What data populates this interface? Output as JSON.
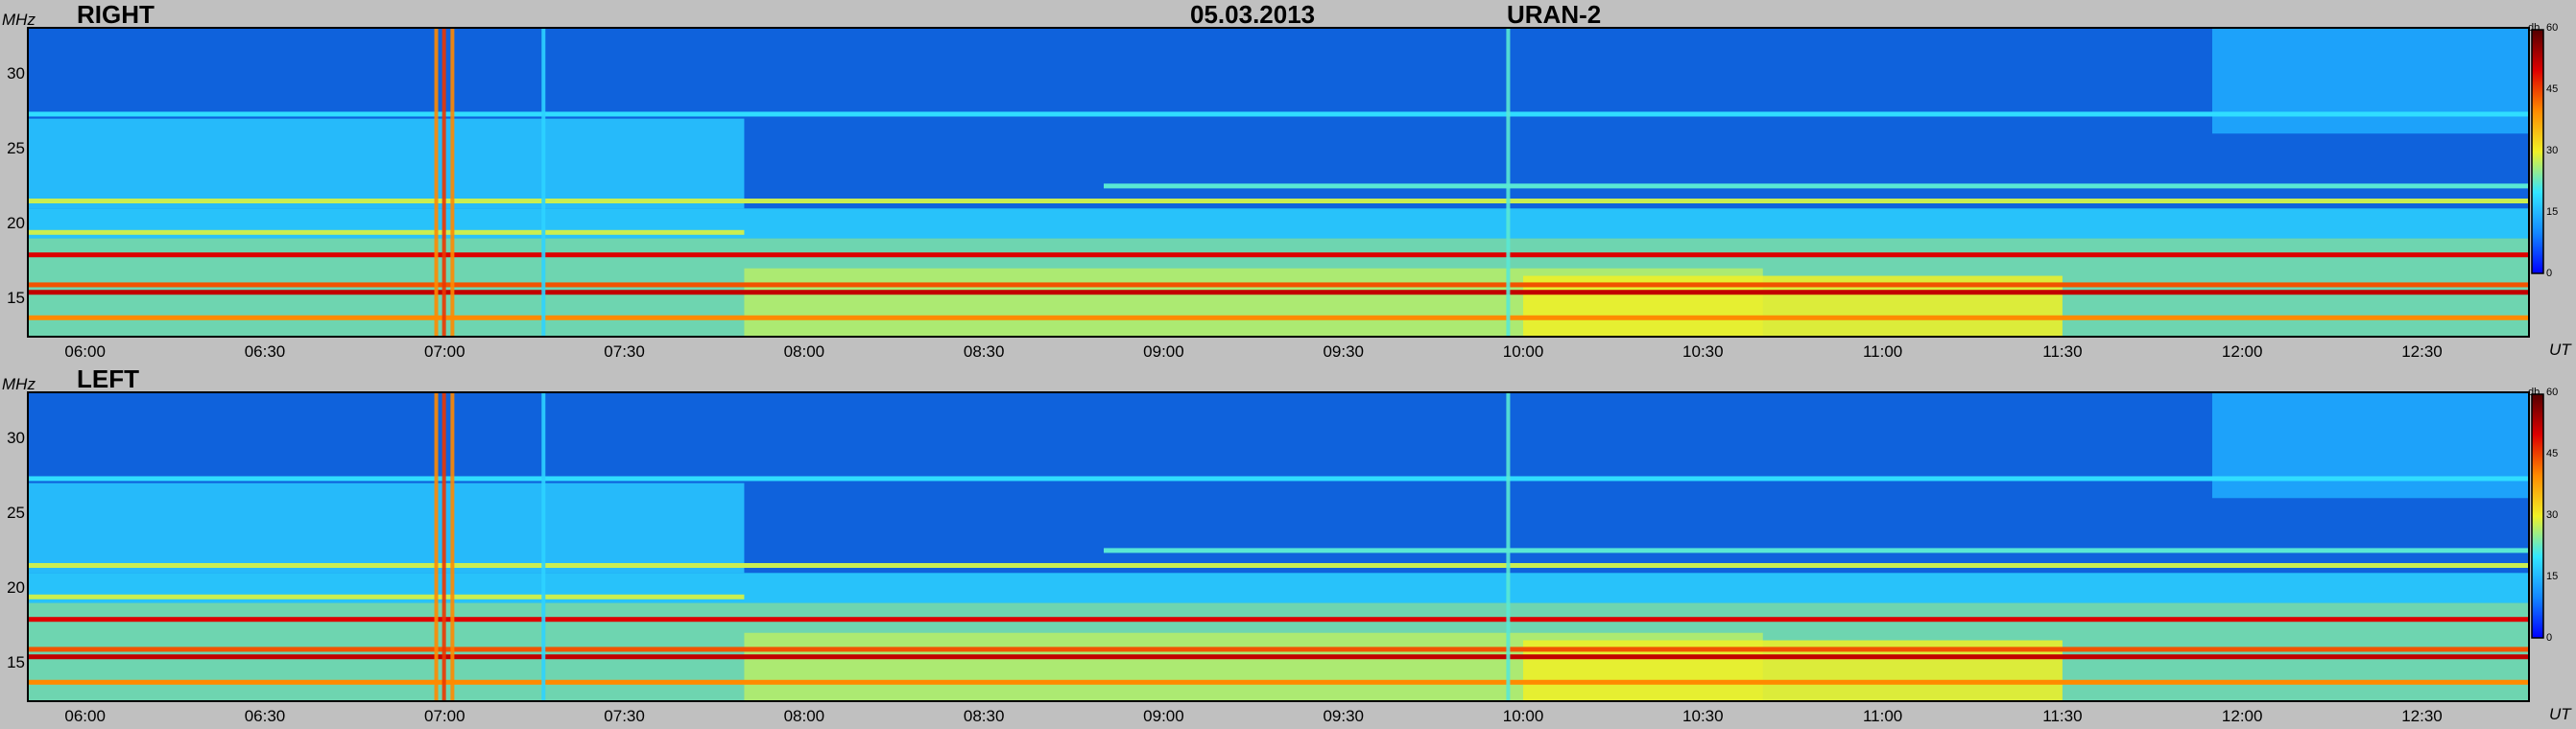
{
  "header": {
    "date": "05.03.2013",
    "instrument": "URAN-2"
  },
  "colorbar": {
    "label": "db",
    "ticks": [
      "0",
      "15",
      "30",
      "45",
      "60"
    ],
    "stops": [
      "#0000ff",
      "#1488ff",
      "#33e6ff",
      "#f0f026",
      "#ff8a00",
      "#dd0000",
      "#550000"
    ]
  },
  "background_color": "#0f62dc",
  "chart_data": [
    {
      "type": "heatmap",
      "title": "RIGHT",
      "ylabel": "MHz",
      "xlabel": "UT",
      "y_ticks": [
        "15",
        "20",
        "25",
        "30"
      ],
      "y_tick_values": [
        15,
        20,
        25,
        30
      ],
      "ylim": [
        12.5,
        33
      ],
      "x_ticks": [
        "06:00",
        "06:30",
        "07:00",
        "07:30",
        "08:00",
        "08:30",
        "09:00",
        "09:30",
        "10:00",
        "10:30",
        "11:00",
        "11:30",
        "12:00",
        "12:30"
      ],
      "x_tick_minutes": [
        360,
        390,
        420,
        450,
        480,
        510,
        540,
        570,
        600,
        630,
        660,
        690,
        720,
        750
      ],
      "xlim_minutes": [
        350.6,
        767.7
      ],
      "clim_db": [
        0,
        60
      ],
      "bands": [
        {
          "freq": 13.7,
          "db": 40,
          "t0": 350.6,
          "t1": 767.7
        },
        {
          "freq": 15.4,
          "db": 52,
          "t0": 350.6,
          "t1": 767.7
        },
        {
          "freq": 15.9,
          "db": 44,
          "t0": 350.6,
          "t1": 767.7
        },
        {
          "freq": 17.9,
          "db": 50,
          "t0": 350.6,
          "t1": 767.7
        },
        {
          "freq": 19.4,
          "db": 28,
          "t0": 350.6,
          "t1": 470
        },
        {
          "freq": 21.5,
          "db": 28,
          "t0": 350.6,
          "t1": 767.7
        },
        {
          "freq": 22.5,
          "db": 22,
          "t0": 530,
          "t1": 767.7
        },
        {
          "freq": 27.3,
          "db": 19,
          "t0": 350.6,
          "t1": 767.7
        }
      ],
      "regions": [
        {
          "t0": 350.6,
          "t1": 767.7,
          "f0": 12.5,
          "f1": 19.0,
          "db": 24
        },
        {
          "t0": 350.6,
          "t1": 767.7,
          "f0": 19.0,
          "f1": 21.0,
          "db": 18
        },
        {
          "t0": 470,
          "t1": 640,
          "f0": 12.5,
          "f1": 17.0,
          "db": 27
        },
        {
          "t0": 600,
          "t1": 690,
          "f0": 12.5,
          "f1": 16.5,
          "db": 30
        },
        {
          "t0": 350.6,
          "t1": 470,
          "f0": 21.0,
          "f1": 27.0,
          "db": 17
        },
        {
          "t0": 715,
          "t1": 767.7,
          "f0": 26.0,
          "f1": 33.0,
          "db": 14
        }
      ],
      "bursts": [
        {
          "t": 418.6,
          "db": 40
        },
        {
          "t": 419.9,
          "db": 46
        },
        {
          "t": 421.3,
          "db": 40
        },
        {
          "t": 597.5,
          "db": 22
        },
        {
          "t": 436.5,
          "db": 18
        }
      ]
    },
    {
      "type": "heatmap",
      "title": "LEFT",
      "ylabel": "MHz",
      "xlabel": "UT",
      "y_ticks": [
        "15",
        "20",
        "25",
        "30"
      ],
      "y_tick_values": [
        15,
        20,
        25,
        30
      ],
      "ylim": [
        12.5,
        33
      ],
      "x_ticks": [
        "06:00",
        "06:30",
        "07:00",
        "07:30",
        "08:00",
        "08:30",
        "09:00",
        "09:30",
        "10:00",
        "10:30",
        "11:00",
        "11:30",
        "12:00",
        "12:30"
      ],
      "x_tick_minutes": [
        360,
        390,
        420,
        450,
        480,
        510,
        540,
        570,
        600,
        630,
        660,
        690,
        720,
        750
      ],
      "xlim_minutes": [
        350.6,
        767.7
      ],
      "clim_db": [
        0,
        60
      ],
      "bands": [
        {
          "freq": 13.7,
          "db": 40,
          "t0": 350.6,
          "t1": 767.7
        },
        {
          "freq": 15.4,
          "db": 52,
          "t0": 350.6,
          "t1": 767.7
        },
        {
          "freq": 15.9,
          "db": 44,
          "t0": 350.6,
          "t1": 767.7
        },
        {
          "freq": 17.9,
          "db": 50,
          "t0": 350.6,
          "t1": 767.7
        },
        {
          "freq": 19.4,
          "db": 28,
          "t0": 350.6,
          "t1": 470
        },
        {
          "freq": 21.5,
          "db": 28,
          "t0": 350.6,
          "t1": 767.7
        },
        {
          "freq": 22.5,
          "db": 22,
          "t0": 530,
          "t1": 767.7
        },
        {
          "freq": 27.3,
          "db": 19,
          "t0": 350.6,
          "t1": 767.7
        }
      ],
      "regions": [
        {
          "t0": 350.6,
          "t1": 767.7,
          "f0": 12.5,
          "f1": 19.0,
          "db": 24
        },
        {
          "t0": 350.6,
          "t1": 767.7,
          "f0": 19.0,
          "f1": 21.0,
          "db": 18
        },
        {
          "t0": 470,
          "t1": 640,
          "f0": 12.5,
          "f1": 17.0,
          "db": 27
        },
        {
          "t0": 600,
          "t1": 690,
          "f0": 12.5,
          "f1": 16.5,
          "db": 30
        },
        {
          "t0": 350.6,
          "t1": 470,
          "f0": 21.0,
          "f1": 27.0,
          "db": 17
        },
        {
          "t0": 715,
          "t1": 767.7,
          "f0": 26.0,
          "f1": 33.0,
          "db": 14
        }
      ],
      "bursts": [
        {
          "t": 418.6,
          "db": 40
        },
        {
          "t": 419.9,
          "db": 46
        },
        {
          "t": 421.3,
          "db": 40
        },
        {
          "t": 597.5,
          "db": 22
        },
        {
          "t": 436.5,
          "db": 18
        }
      ]
    }
  ]
}
